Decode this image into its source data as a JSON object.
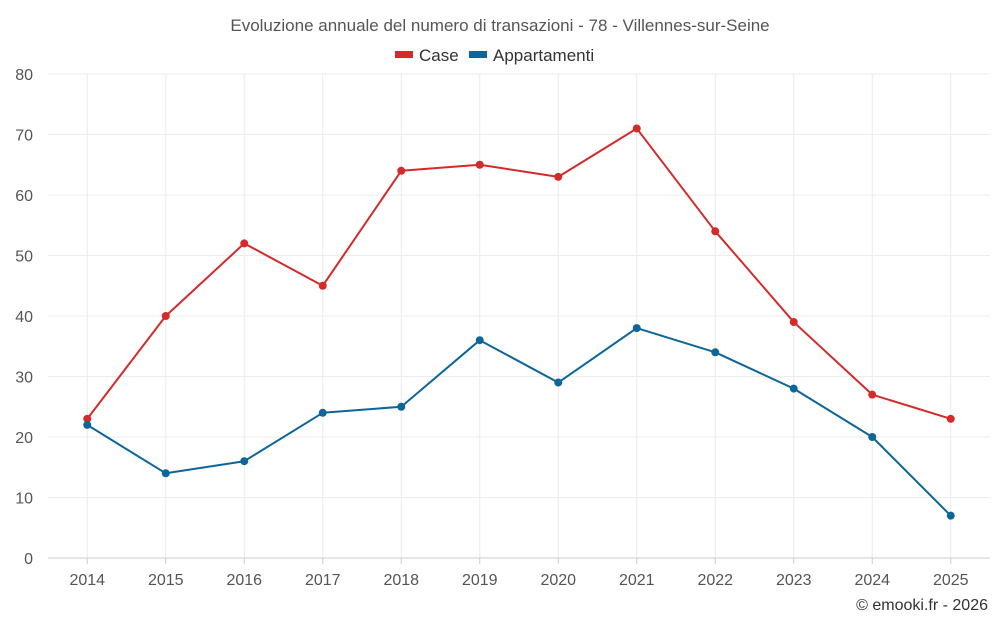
{
  "chart_data": {
    "type": "line",
    "title": "Evoluzione annuale del numero di transazioni - 78 - Villennes-sur-Seine",
    "categories": [
      "2014",
      "2015",
      "2016",
      "2017",
      "2018",
      "2019",
      "2020",
      "2021",
      "2022",
      "2023",
      "2024",
      "2025"
    ],
    "series": [
      {
        "name": "Case",
        "color": "#d42a2a",
        "values": [
          23,
          40,
          52,
          45,
          64,
          65,
          63,
          71,
          54,
          39,
          27,
          23
        ]
      },
      {
        "name": "Appartamenti",
        "color": "#0d6699",
        "values": [
          22,
          14,
          16,
          24,
          25,
          36,
          29,
          38,
          34,
          28,
          20,
          7
        ]
      }
    ],
    "ylim": [
      0,
      80
    ],
    "yticks": [
      0,
      10,
      20,
      30,
      40,
      50,
      60,
      70,
      80
    ],
    "grid": true,
    "legend_position": "top-center",
    "xlabel": "",
    "ylabel": ""
  },
  "credit": "© emooki.fr - 2026"
}
